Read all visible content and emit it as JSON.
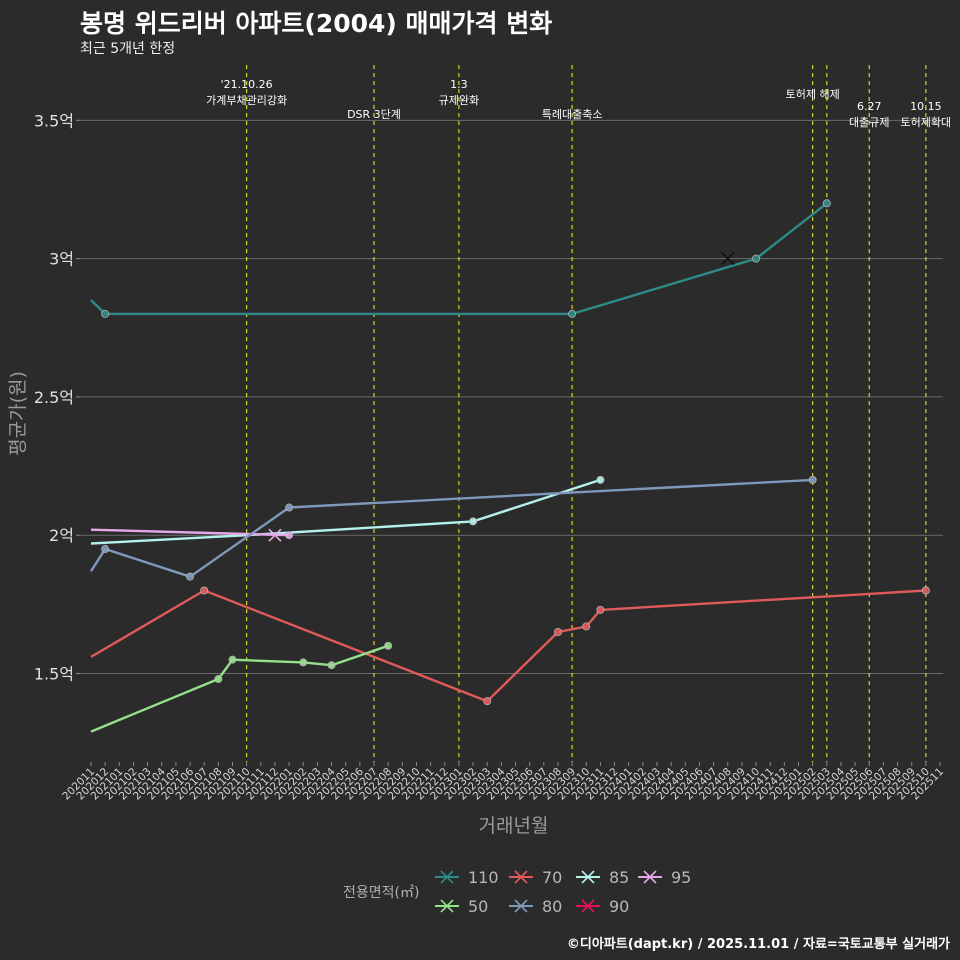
{
  "chart_data": {
    "type": "line",
    "title": "봉명 위드리버 아파트(2004) 매매가격 변화",
    "subtitle": "최근 5개년 한정",
    "xlabel": "거래년월",
    "ylabel": "평균가(원)",
    "caption": "©디아파트(dapt.kr) / 2025.11.01 / 자료=국토교통부 실거래가",
    "legend_title": "전용면적(㎡)",
    "legend_position": "bottom",
    "ylim": [
      1.18,
      3.7
    ],
    "y_ticks": [
      {
        "value": 1.5,
        "label": "1.5억"
      },
      {
        "value": 2.0,
        "label": "2억"
      },
      {
        "value": 2.5,
        "label": "2.5억"
      },
      {
        "value": 3.0,
        "label": "3억"
      },
      {
        "value": 3.5,
        "label": "3.5억"
      }
    ],
    "x_ticks": [
      "202011",
      "202012",
      "202101",
      "202102",
      "202103",
      "202104",
      "202105",
      "202106",
      "202107",
      "202108",
      "202109",
      "202110",
      "202111",
      "202112",
      "202201",
      "202202",
      "202203",
      "202204",
      "202205",
      "202206",
      "202207",
      "202208",
      "202209",
      "202210",
      "202211",
      "202212",
      "202301",
      "202302",
      "202303",
      "202304",
      "202305",
      "202306",
      "202307",
      "202308",
      "202309",
      "202310",
      "202311",
      "202312",
      "202401",
      "202402",
      "202403",
      "202404",
      "202405",
      "202406",
      "202407",
      "202408",
      "202409",
      "202410",
      "202411",
      "202412",
      "202501",
      "202502",
      "202503",
      "202504",
      "202505",
      "202506",
      "202507",
      "202508",
      "202509",
      "202510",
      "202511"
    ],
    "events": [
      {
        "month": "202110",
        "label": [
          "'21.10.26",
          "가계부채관리강화"
        ],
        "row": 0
      },
      {
        "month": "202207",
        "label": [
          "DSR 3단계"
        ],
        "row": 2
      },
      {
        "month": "202301",
        "label": [
          "1.3",
          "규제완화"
        ],
        "row": 0
      },
      {
        "month": "202309",
        "label": [
          "특례대출축소"
        ],
        "row": 2
      },
      {
        "month": "202502",
        "label": [
          "토허제 해제"
        ],
        "row": 1
      },
      {
        "month": "202503",
        "label": [],
        "row": 1
      },
      {
        "month": "202506",
        "label": [
          "6.27",
          "대출규제"
        ],
        "row": 3
      },
      {
        "month": "202510",
        "label": [
          "10.15",
          "토허제확대"
        ],
        "row": 3
      }
    ],
    "series": [
      {
        "name": "110",
        "color": "#2e8b87",
        "points": [
          [
            "202011",
            2.85
          ],
          [
            "202012",
            2.8
          ],
          [
            "202309",
            2.8
          ],
          [
            "202410",
            3.0
          ],
          [
            "202503",
            3.2
          ]
        ],
        "markers": [
          [
            "202012",
            2.8
          ],
          [
            "202309",
            2.8
          ],
          [
            "202410",
            3.0
          ],
          [
            "202503",
            3.2
          ]
        ],
        "cross": [
          [
            "202408",
            3.0
          ]
        ]
      },
      {
        "name": "70",
        "color": "#e05a5a",
        "points": [
          [
            "202011",
            1.56
          ],
          [
            "202107",
            1.8
          ],
          [
            "202303",
            1.4
          ],
          [
            "202308",
            1.65
          ],
          [
            "202310",
            1.67
          ],
          [
            "202311",
            1.73
          ],
          [
            "202510",
            1.8
          ]
        ],
        "markers": [
          [
            "202107",
            1.8
          ],
          [
            "202303",
            1.4
          ],
          [
            "202308",
            1.65
          ],
          [
            "202310",
            1.67
          ],
          [
            "202311",
            1.73
          ],
          [
            "202510",
            1.8
          ]
        ],
        "cross": []
      },
      {
        "name": "85",
        "color": "#b4f0ec",
        "points": [
          [
            "202011",
            1.97
          ],
          [
            "202110",
            2.0
          ],
          [
            "202302",
            2.05
          ],
          [
            "202311",
            2.2
          ]
        ],
        "markers": [
          [
            "202302",
            2.05
          ],
          [
            "202311",
            2.2
          ]
        ],
        "cross": []
      },
      {
        "name": "95",
        "color": "#e5a9e8",
        "points": [
          [
            "202011",
            2.02
          ],
          [
            "202201",
            2.0
          ]
        ],
        "markers": [
          [
            "202201",
            2.0
          ]
        ],
        "cross": [
          [
            "202112",
            2.0
          ]
        ]
      },
      {
        "name": "50",
        "color": "#95e08a",
        "points": [
          [
            "202011",
            1.29
          ],
          [
            "202108",
            1.48
          ],
          [
            "202109",
            1.55
          ],
          [
            "202202",
            1.54
          ],
          [
            "202204",
            1.53
          ],
          [
            "202208",
            1.6
          ]
        ],
        "markers": [
          [
            "202108",
            1.48
          ],
          [
            "202109",
            1.55
          ],
          [
            "202202",
            1.54
          ],
          [
            "202204",
            1.53
          ],
          [
            "202208",
            1.6
          ]
        ],
        "cross": []
      },
      {
        "name": "80",
        "color": "#7f99bd",
        "points": [
          [
            "202011",
            1.87
          ],
          [
            "202012",
            1.95
          ],
          [
            "202106",
            1.85
          ],
          [
            "202201",
            2.1
          ],
          [
            "202502",
            2.2
          ]
        ],
        "markers": [
          [
            "202012",
            1.95
          ],
          [
            "202106",
            1.85
          ],
          [
            "202201",
            2.1
          ],
          [
            "202502",
            2.2
          ]
        ],
        "cross": []
      },
      {
        "name": "90",
        "color": "#e8105a",
        "points": [],
        "markers": [],
        "cross": []
      }
    ],
    "legend_entries": [
      "110",
      "70",
      "85",
      "95",
      "50",
      "80",
      "90"
    ],
    "grid": true
  }
}
